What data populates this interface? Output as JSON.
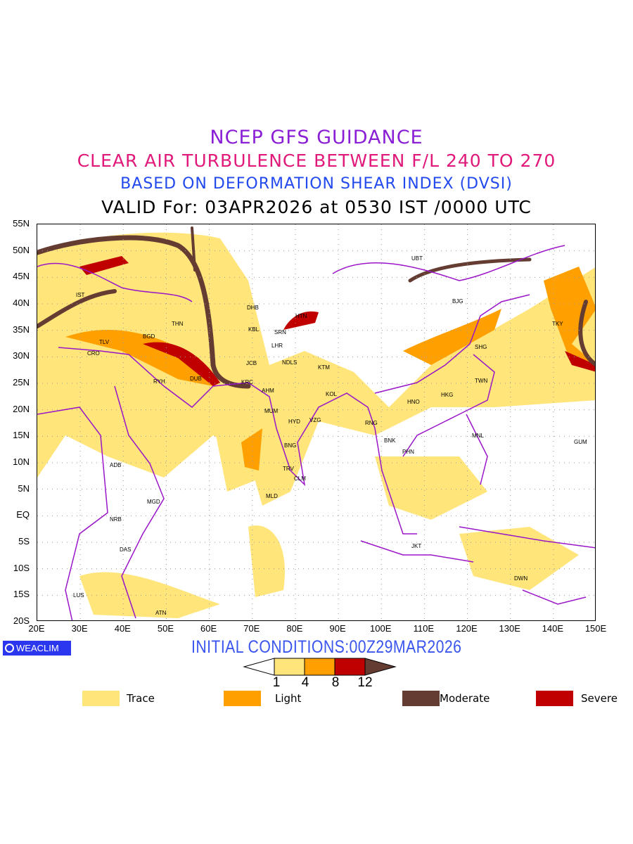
{
  "title": {
    "line1": "NCEP GFS GUIDANCE",
    "line2": "CLEAR AIR TURBULENCE BETWEEN F/L 240 TO 270",
    "line3": "BASED ON DEFORMATION SHEAR INDEX (DVSI)",
    "line4": "VALID For: 03APR2026 at 0530 IST /0000 UTC"
  },
  "map": {
    "lat_labels": [
      "55N",
      "50N",
      "45N",
      "40N",
      "35N",
      "30N",
      "25N",
      "20N",
      "15N",
      "10N",
      "5N",
      "EQ",
      "5S",
      "10S",
      "15S",
      "20S"
    ],
    "lon_labels": [
      "20E",
      "30E",
      "40E",
      "50E",
      "60E",
      "70E",
      "80E",
      "90E",
      "100E",
      "110E",
      "120E",
      "130E",
      "140E",
      "150E"
    ],
    "cities": [
      "IST",
      "THN",
      "BGD",
      "TLV",
      "CRO",
      "RYH",
      "DUB",
      "DHB",
      "KBL",
      "SRN",
      "HTN",
      "LHR",
      "JCB",
      "NDLS",
      "KTM",
      "KRC",
      "AHM",
      "MUM",
      "KOL",
      "HYD",
      "VZG",
      "RNG",
      "BNG",
      "TRV",
      "CLM",
      "MLD",
      "ADB",
      "MGD",
      "NRB",
      "DAS",
      "LUS",
      "ATN",
      "JKT",
      "DWN",
      "MNL",
      "GUM",
      "PHN",
      "BNK",
      "HNO",
      "HKG",
      "TWN",
      "SHG",
      "BJG",
      "TKY",
      "UBT"
    ]
  },
  "footer": {
    "logo": "WEACLIM",
    "initial_conditions": "INITIAL CONDITIONS:00Z29MAR2026"
  },
  "colorbar": {
    "ticks": [
      "1",
      "4",
      "8",
      "12"
    ],
    "colors": [
      "#ffe57a",
      "#ffa000",
      "#c00000",
      "#643c32"
    ]
  },
  "legend": [
    {
      "label": "Trace",
      "color": "#ffe57a"
    },
    {
      "label": "Light",
      "color": "#ffa000"
    },
    {
      "label": "Moderate",
      "color": "#643c32"
    },
    {
      "label": "Severe",
      "color": "#c00000"
    }
  ],
  "colors": {
    "border": "#9a16c8",
    "grid": "#999999"
  }
}
